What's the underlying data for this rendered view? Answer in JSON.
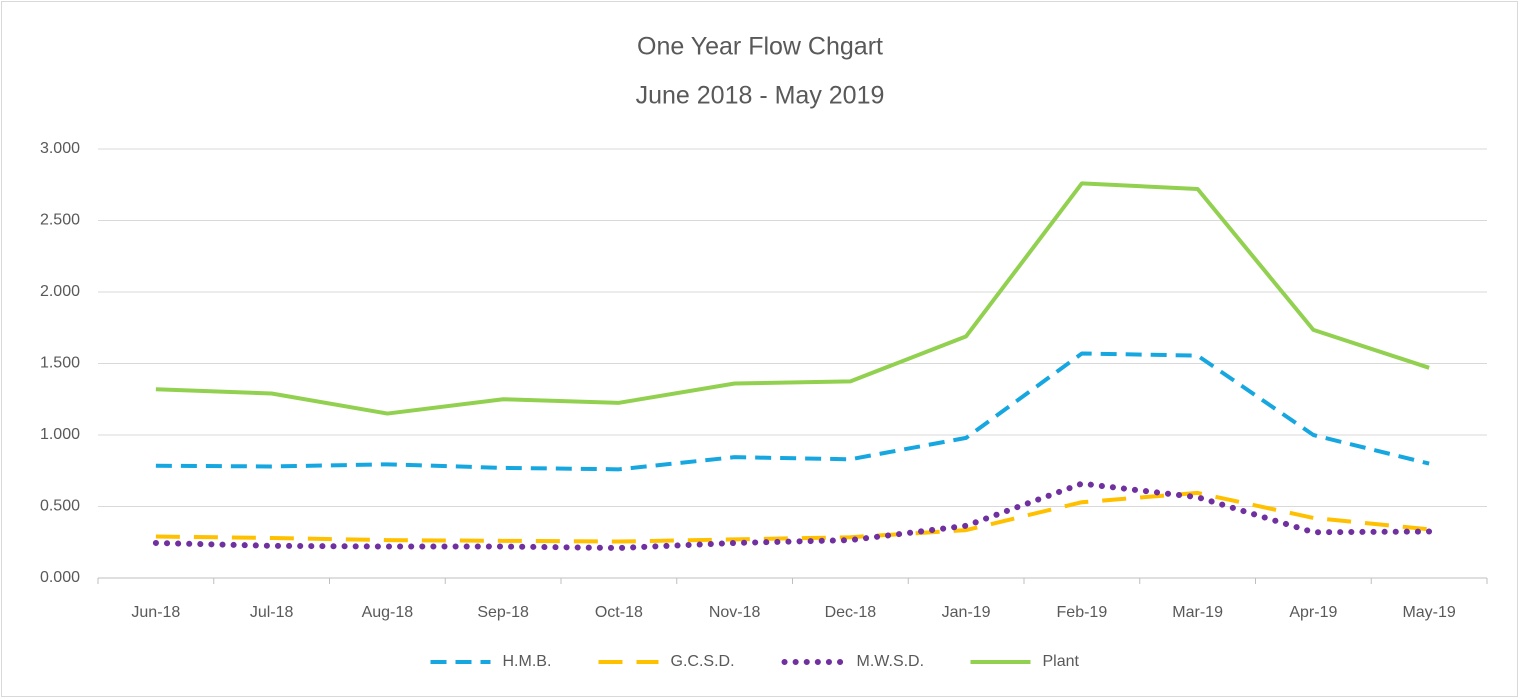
{
  "chart_data": {
    "type": "line",
    "title": "One Year Flow Chgart",
    "subtitle": "June 2018 - May 2019",
    "categories": [
      "Jun-18",
      "Jul-18",
      "Aug-18",
      "Sep-18",
      "Oct-18",
      "Nov-18",
      "Dec-18",
      "Jan-19",
      "Feb-19",
      "Mar-19",
      "Apr-19",
      "May-19"
    ],
    "series": [
      {
        "name": "H.M.B.",
        "color": "#16a7e0",
        "style": "dashed",
        "values": [
          0.785,
          0.78,
          0.795,
          0.77,
          0.76,
          0.845,
          0.83,
          0.98,
          1.57,
          1.555,
          1.0,
          0.8
        ]
      },
      {
        "name": "G.C.S.D.",
        "color": "#ffc000",
        "style": "long-dashed",
        "values": [
          0.29,
          0.28,
          0.265,
          0.26,
          0.255,
          0.27,
          0.285,
          0.335,
          0.53,
          0.595,
          0.42,
          0.34
        ]
      },
      {
        "name": "M.W.S.D.",
        "color": "#7030a0",
        "style": "dotted",
        "values": [
          0.245,
          0.225,
          0.22,
          0.22,
          0.21,
          0.245,
          0.265,
          0.365,
          0.66,
          0.565,
          0.32,
          0.325
        ]
      },
      {
        "name": "Plant",
        "color": "#92d050",
        "style": "solid",
        "values": [
          1.32,
          1.29,
          1.15,
          1.25,
          1.225,
          1.36,
          1.375,
          1.69,
          2.76,
          2.72,
          1.735,
          1.47
        ]
      }
    ],
    "ylim": [
      0,
      3
    ],
    "yticks": [
      {
        "value": 0,
        "label": "0.000"
      },
      {
        "value": 0.5,
        "label": "0.500"
      },
      {
        "value": 1,
        "label": "1.000"
      },
      {
        "value": 1.5,
        "label": "1.500"
      },
      {
        "value": 2,
        "label": "2.000"
      },
      {
        "value": 2.5,
        "label": "2.500"
      },
      {
        "value": 3,
        "label": "3.000"
      }
    ],
    "grid": true,
    "legend": "bottom"
  }
}
